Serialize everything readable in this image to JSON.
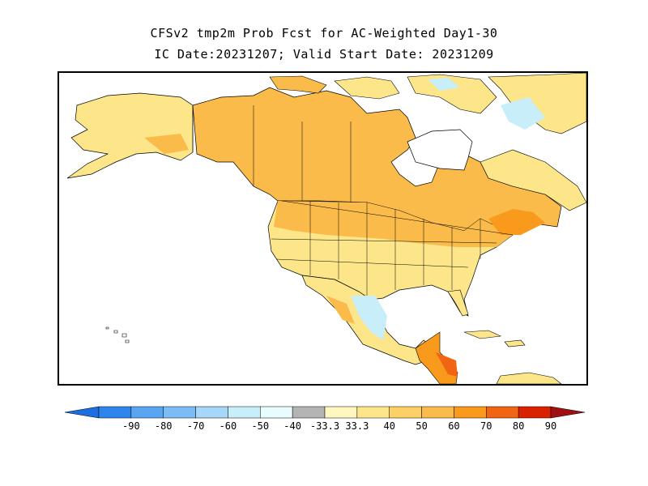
{
  "title": {
    "line1": "CFSv2 tmp2m Prob Fcst for AC-Weighted Day1-30",
    "line2": "IC Date:20231207; Valid Start Date: 20231209"
  },
  "colorbar": {
    "colors": [
      "#1b6fe0",
      "#2e86ec",
      "#5aa5f2",
      "#7cbcf5",
      "#a6d6f8",
      "#c8eefa",
      "#e8fbfd",
      "#b4b4b4",
      "#fff6c0",
      "#fde68a",
      "#fdd066",
      "#fbbb4a",
      "#f99a1c",
      "#f06414",
      "#d92200",
      "#a01010"
    ],
    "labels": [
      "-90",
      "-80",
      "-70",
      "-60",
      "-50",
      "-40",
      "-33.3",
      "33.3",
      "40",
      "50",
      "60",
      "70",
      "80",
      "90"
    ]
  }
}
